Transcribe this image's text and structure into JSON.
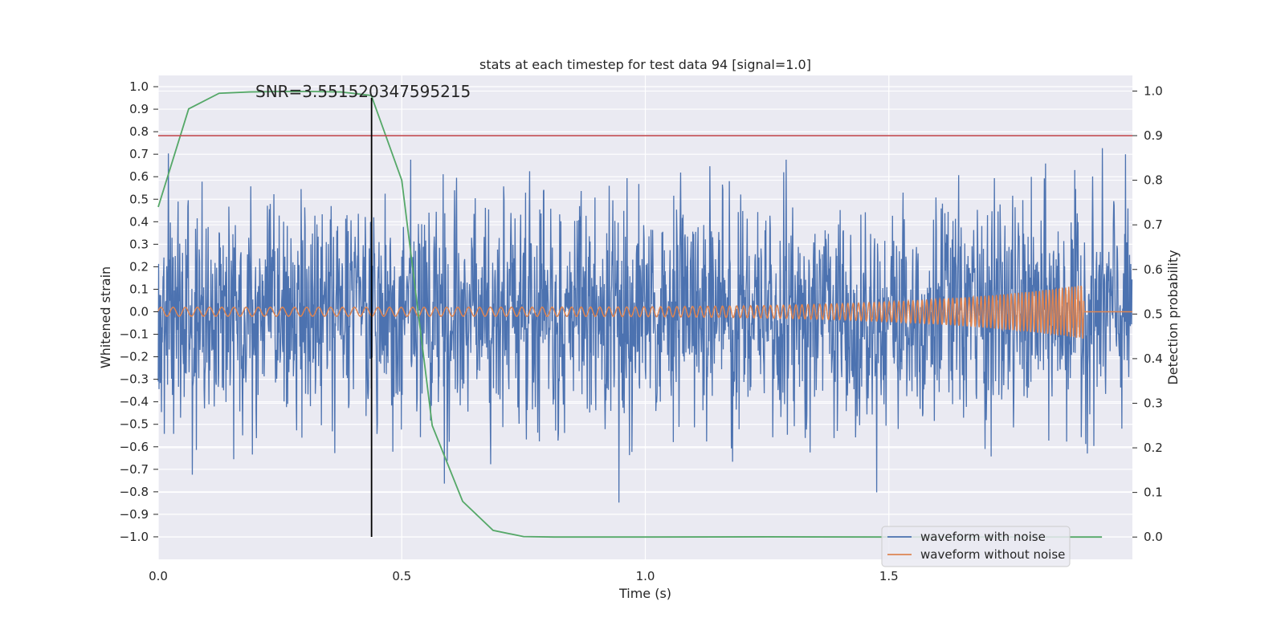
{
  "chart_data": {
    "type": "line",
    "title": "stats at each timestep for test data 94 [signal=1.0]",
    "annotation": "SNR=3.551520347595215",
    "xlabel": "Time (s)",
    "ylabel_left": "Whitened strain",
    "ylabel_right": "Detection probability",
    "xlim": [
      0.0,
      2.0
    ],
    "ylim_left": [
      -1.1,
      1.05
    ],
    "ylim_right": [
      -0.05,
      1.035
    ],
    "x_ticks": [
      0.0,
      0.5,
      1.0,
      1.5
    ],
    "x_tick_labels": [
      "0.0",
      "0.5",
      "1.0",
      "1.5"
    ],
    "y_left_ticks": [
      1.0,
      0.9,
      0.8,
      0.7,
      0.6,
      0.5,
      0.4,
      0.3,
      0.2,
      0.1,
      0.0,
      -0.1,
      -0.2,
      -0.3,
      -0.4,
      -0.5,
      -0.6,
      -0.7,
      -0.8,
      -0.9,
      -1.0
    ],
    "y_left_tick_labels": [
      "1.0",
      "0.9",
      "0.8",
      "0.7",
      "0.6",
      "0.5",
      "0.4",
      "0.3",
      "0.2",
      "0.1",
      "0.0",
      "−0.1",
      "−0.2",
      "−0.3",
      "−0.4",
      "−0.5",
      "−0.6",
      "−0.7",
      "−0.8",
      "−0.9",
      "−1.0"
    ],
    "y_right_ticks": [
      1.0,
      0.9,
      0.8,
      0.7,
      0.6,
      0.5,
      0.4,
      0.3,
      0.2,
      0.1,
      0.0
    ],
    "y_right_tick_labels": [
      "1.0",
      "0.9",
      "0.8",
      "0.7",
      "0.6",
      "0.5",
      "0.4",
      "0.3",
      "0.2",
      "0.1",
      "0.0"
    ],
    "series": [
      {
        "name": "waveform with noise",
        "color": "#4c72b0",
        "axis": "left",
        "kind": "noise",
        "duration": 2.0,
        "amplitude_std": 0.28,
        "peak_max": 0.95,
        "peak_min": -1.0
      },
      {
        "name": "waveform without noise",
        "color": "#dd8452",
        "axis": "left",
        "kind": "chirp",
        "start": 0.0,
        "end": 1.9,
        "amplitude_start": 0.02,
        "amplitude_end": 0.12,
        "freq_start": 40,
        "freq_end": 160
      },
      {
        "name": "detection probability",
        "color": "#55a868",
        "axis": "right",
        "x": [
          0.0,
          0.0625,
          0.125,
          0.1875,
          0.25,
          0.3125,
          0.375,
          0.4375,
          0.5,
          0.5625,
          0.625,
          0.6875,
          0.75,
          0.8125,
          0.875,
          1.0,
          1.25,
          1.5,
          1.75,
          1.9375
        ],
        "y": [
          0.74,
          0.96,
          0.995,
          0.998,
          0.999,
          0.999,
          0.998,
          0.99,
          0.8,
          0.25,
          0.08,
          0.015,
          0.001,
          0.0,
          0.0,
          0.0,
          0.0005,
          0.0,
          0.0,
          0.0
        ]
      }
    ],
    "threshold": {
      "value": 0.9,
      "axis": "right",
      "color": "#c44e52"
    },
    "marker_time": 0.438,
    "marker_color": "#000000",
    "legend": {
      "position": "lower-right",
      "entries": [
        {
          "label": "waveform with noise",
          "color": "#4c72b0"
        },
        {
          "label": "waveform without noise",
          "color": "#dd8452"
        }
      ]
    },
    "background": "#eaeaf2",
    "grid": true
  }
}
